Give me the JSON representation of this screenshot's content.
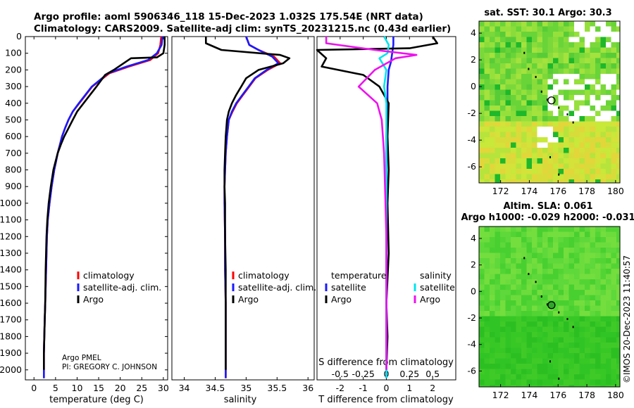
{
  "title_line1": "Argo profile: aoml 5906346_118 15-Dec-2023 1.032S 175.54E (NRT data)",
  "title_line2": "Climatology: CARS2009. Satellite-adj clim: synTS_20231215.nc (0.43d earlier)",
  "sst_title": "sat. SST: 30.1 Argo: 30.3",
  "sla_title1": "Altim. SLA: 0.061",
  "sla_title2": "Argo h1000: -0.029 h2000: -0.031",
  "credit": "©IMOS 20-Dec-2023 11:40:57",
  "argo_note1": "Argo PMEL",
  "argo_note2": "PI: GREGORY C. JOHNSON",
  "colors": {
    "argo": "#000000",
    "climatology": "#ff0000",
    "satellite": "#1a1aff",
    "sat_salinity": "#00e5ee",
    "argo_salinity": "#ee11ee"
  },
  "chart_data": [
    {
      "type": "line",
      "id": "temperature",
      "xlabel": "temperature (deg C)",
      "ylabel": "",
      "xlim": [
        -2,
        31
      ],
      "ylim": [
        2060,
        0
      ],
      "xticks": [
        0,
        5,
        10,
        15,
        20,
        25,
        30
      ],
      "yticks": [
        0,
        100,
        200,
        300,
        400,
        500,
        600,
        700,
        800,
        900,
        1000,
        1100,
        1200,
        1300,
        1400,
        1500,
        1600,
        1700,
        1800,
        1900,
        2000
      ],
      "legend": [
        "climatology",
        "satellite-adj. clim.",
        "Argo"
      ],
      "series": [
        {
          "name": "climatology",
          "color": "#ff0000",
          "x": [
            29.5,
            29.3,
            28.8,
            27.0,
            22.0,
            17.5,
            15.5,
            13.5,
            12.0,
            10.5,
            9.0,
            8.0,
            7.2,
            6.5,
            6.0,
            5.5,
            5.1,
            4.7,
            4.1,
            3.6,
            3.2,
            3.0,
            2.8,
            2.6,
            2.5,
            2.4,
            2.3,
            2.3
          ],
          "y": [
            0,
            50,
            100,
            140,
            180,
            220,
            260,
            300,
            350,
            400,
            450,
            500,
            550,
            600,
            650,
            700,
            750,
            800,
            900,
            1000,
            1100,
            1200,
            1400,
            1600,
            1700,
            1800,
            1900,
            2050
          ]
        },
        {
          "name": "satellite-adj. clim.",
          "color": "#1a1aff",
          "x": [
            29.8,
            29.6,
            28.5,
            26.5,
            21.5,
            17.2,
            15.3,
            13.4,
            11.9,
            10.4,
            9.0,
            8.0,
            7.2,
            6.5,
            6.0,
            5.5,
            5.1,
            4.7,
            4.1,
            3.6,
            3.2,
            3.0,
            2.8,
            2.6,
            2.5,
            2.4,
            2.3,
            2.3
          ],
          "y": [
            0,
            50,
            100,
            140,
            180,
            220,
            260,
            300,
            350,
            400,
            450,
            500,
            550,
            600,
            650,
            700,
            750,
            800,
            900,
            1000,
            1100,
            1200,
            1400,
            1600,
            1700,
            1800,
            1900,
            2050
          ]
        },
        {
          "name": "Argo",
          "color": "#000000",
          "x": [
            30.3,
            30.3,
            30.0,
            28.5,
            22.5,
            18.5,
            16.5,
            14.5,
            13.0,
            11.5,
            10.0,
            9.0,
            8.0,
            7.0,
            6.2,
            5.5,
            5.0,
            4.5,
            3.9,
            3.4,
            3.1,
            2.9,
            2.7,
            2.6,
            2.5,
            2.4,
            2.3,
            2.3
          ],
          "y": [
            0,
            50,
            100,
            125,
            130,
            200,
            230,
            300,
            350,
            400,
            450,
            500,
            550,
            600,
            650,
            700,
            750,
            800,
            900,
            1000,
            1100,
            1200,
            1400,
            1600,
            1700,
            1800,
            1900,
            2000
          ]
        }
      ]
    },
    {
      "type": "line",
      "id": "salinity",
      "xlabel": "salinity",
      "xlim": [
        33.8,
        36.1
      ],
      "ylim": [
        2060,
        0
      ],
      "xticks": [
        34,
        34.5,
        35,
        35.5,
        36
      ],
      "xticklabels": [
        "34",
        "34.5",
        "35",
        "35.5",
        "36"
      ],
      "legend": [
        "climatology",
        "satellite-adj. clim.",
        "Argo"
      ],
      "series": [
        {
          "name": "climatology",
          "color": "#ff0000",
          "x": [
            35.0,
            35.05,
            35.2,
            35.45,
            35.55,
            35.35,
            35.15,
            35.05,
            34.95,
            34.85,
            34.78,
            34.72,
            34.69,
            34.67,
            34.66,
            34.65,
            34.65,
            34.66,
            34.66,
            34.67,
            34.67,
            34.67
          ],
          "y": [
            0,
            50,
            80,
            120,
            160,
            200,
            250,
            300,
            350,
            400,
            450,
            500,
            600,
            700,
            800,
            900,
            1000,
            1200,
            1400,
            1600,
            1800,
            2050
          ]
        },
        {
          "name": "satellite-adj. clim.",
          "color": "#1a1aff",
          "x": [
            35.0,
            35.05,
            35.2,
            35.42,
            35.52,
            35.33,
            35.14,
            35.04,
            34.94,
            34.84,
            34.77,
            34.72,
            34.69,
            34.67,
            34.66,
            34.65,
            34.65,
            34.66,
            34.66,
            34.67,
            34.67,
            34.67
          ],
          "y": [
            0,
            50,
            80,
            120,
            160,
            200,
            250,
            300,
            350,
            400,
            450,
            500,
            600,
            700,
            800,
            900,
            1000,
            1200,
            1400,
            1600,
            1800,
            2050
          ]
        },
        {
          "name": "Argo",
          "color": "#000000",
          "x": [
            34.35,
            34.35,
            34.6,
            35.55,
            35.7,
            35.6,
            35.2,
            35.0,
            34.92,
            34.84,
            34.77,
            34.72,
            34.69,
            34.67,
            34.66,
            34.65,
            34.65,
            34.66,
            34.66,
            34.67,
            34.67,
            34.67
          ],
          "y": [
            0,
            40,
            80,
            110,
            130,
            160,
            200,
            250,
            300,
            350,
            400,
            450,
            500,
            600,
            700,
            800,
            900,
            1000,
            1200,
            1400,
            1600,
            2000
          ]
        }
      ]
    },
    {
      "type": "line",
      "id": "difference",
      "xlabel": "T difference from climatology",
      "xlabel_top": "S difference from climatology",
      "xlim": [
        -3,
        3
      ],
      "ylim": [
        2060,
        0
      ],
      "xticks": [
        -2,
        -1,
        0,
        1,
        2
      ],
      "top_ticks": [
        -0.5,
        -0.25,
        0,
        0.25,
        0.5
      ],
      "top_ticklabels": [
        "-0.5",
        "-0.25",
        "0",
        "0.25",
        "0.5"
      ],
      "legend_temperature_title": "temperature",
      "legend_salinity_title": "salinity",
      "legend_temperature": [
        "satellite",
        "Argo"
      ],
      "legend_salinity": [
        "satellite",
        "Argo"
      ],
      "series": [
        {
          "name": "temperature satellite",
          "color": "#1a1aff",
          "x": [
            0.3,
            0.3,
            0.25,
            0.2,
            0.1,
            0.05,
            0.05,
            0.0,
            0.0,
            0.0,
            0.0,
            0.0,
            0.0
          ],
          "y": [
            0,
            50,
            100,
            150,
            200,
            300,
            400,
            600,
            800,
            1000,
            1400,
            1800,
            2050
          ]
        },
        {
          "name": "temperature Argo",
          "color": "#000000",
          "x": [
            2.0,
            2.2,
            1.0,
            -3.0,
            -2.6,
            -2.8,
            -1.0,
            -0.3,
            0.1,
            0.05,
            0.1,
            0.05,
            0.1,
            0.0,
            0.05,
            0.0
          ],
          "y": [
            0,
            40,
            70,
            80,
            130,
            180,
            230,
            300,
            400,
            600,
            800,
            1000,
            1300,
            1600,
            1800,
            2000
          ]
        },
        {
          "name": "salinity satellite",
          "color": "#00e5ee",
          "x": [
            -0.1,
            0.1,
            0.05,
            -0.3,
            0.0,
            -0.1,
            0.0,
            0.0,
            0.0,
            0.0
          ],
          "y": [
            0,
            50,
            100,
            130,
            200,
            300,
            400,
            800,
            1400,
            2050
          ]
        },
        {
          "name": "salinity Argo",
          "color": "#ee11ee",
          "x": [
            -2.6,
            -2.6,
            -0.5,
            1.3,
            0.4,
            -0.5,
            -1.2,
            -0.4,
            -0.2,
            -0.1,
            0.0,
            0.0
          ],
          "y": [
            0,
            40,
            80,
            110,
            130,
            200,
            300,
            400,
            500,
            700,
            1200,
            2000
          ]
        }
      ]
    },
    {
      "type": "heatmap",
      "id": "sst-map",
      "title": "sat. SST: 30.1 Argo: 30.3",
      "xlim": [
        170.5,
        180.3
      ],
      "ylim": [
        -7.2,
        4.9
      ],
      "xticks": [
        172,
        174,
        176,
        178,
        180
      ],
      "yticks": [
        4,
        2,
        0,
        -2,
        -4,
        -6
      ],
      "marker": {
        "lon": 175.54,
        "lat": -1.03
      }
    },
    {
      "type": "heatmap",
      "id": "sla-map",
      "title": "Altim. SLA: 0.061",
      "xlim": [
        170.5,
        180.3
      ],
      "ylim": [
        -7.2,
        4.9
      ],
      "xticks": [
        172,
        174,
        176,
        178,
        180
      ],
      "yticks": [
        4,
        2,
        0,
        -2,
        -4,
        -6
      ],
      "marker": {
        "lon": 175.54,
        "lat": -1.03
      }
    }
  ]
}
